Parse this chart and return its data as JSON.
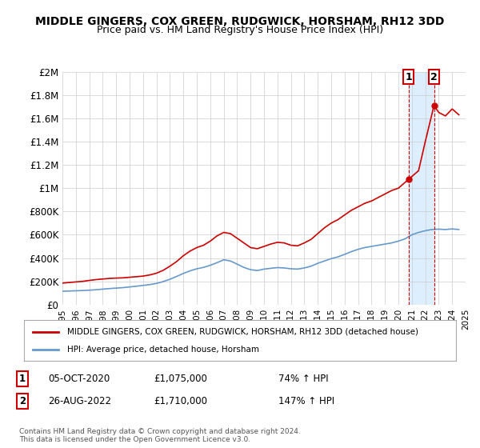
{
  "title": "MIDDLE GINGERS, COX GREEN, RUDGWICK, HORSHAM, RH12 3DD",
  "subtitle": "Price paid vs. HM Land Registry's House Price Index (HPI)",
  "legend_label_red": "MIDDLE GINGERS, COX GREEN, RUDGWICK, HORSHAM, RH12 3DD (detached house)",
  "legend_label_blue": "HPI: Average price, detached house, Horsham",
  "footer": "Contains HM Land Registry data © Crown copyright and database right 2024.\nThis data is licensed under the Open Government Licence v3.0.",
  "annotation1_num": "1",
  "annotation1_date": "05-OCT-2020",
  "annotation1_price": "£1,075,000",
  "annotation1_hpi": "74% ↑ HPI",
  "annotation2_num": "2",
  "annotation2_date": "26-AUG-2022",
  "annotation2_price": "£1,710,000",
  "annotation2_hpi": "147% ↑ HPI",
  "ylim": [
    0,
    2000000
  ],
  "yticks": [
    0,
    200000,
    400000,
    600000,
    800000,
    1000000,
    1200000,
    1400000,
    1600000,
    1800000,
    2000000
  ],
  "ytick_labels": [
    "£0",
    "£200K",
    "£400K",
    "£600K",
    "£800K",
    "£1M",
    "£1.2M",
    "£1.4M",
    "£1.6M",
    "£1.8M",
    "£2M"
  ],
  "red_color": "#cc0000",
  "blue_color": "#6699cc",
  "highlight_color": "#ddeeff",
  "vline_color": "#cc0000",
  "point1_x": 2020.75,
  "point1_y": 1075000,
  "point2_x": 2022.65,
  "point2_y": 1710000,
  "xmin": 1995,
  "xmax": 2025,
  "red_x": [
    1995,
    1995.5,
    1996,
    1996.5,
    1997,
    1997.5,
    1998,
    1998.5,
    1999,
    1999.5,
    2000,
    2000.5,
    2001,
    2001.5,
    2002,
    2002.5,
    2003,
    2003.5,
    2004,
    2004.5,
    2005,
    2005.5,
    2006,
    2006.5,
    2007,
    2007.5,
    2008,
    2008.5,
    2009,
    2009.5,
    2010,
    2010.5,
    2011,
    2011.5,
    2012,
    2012.5,
    2013,
    2013.5,
    2014,
    2014.5,
    2015,
    2015.5,
    2016,
    2016.5,
    2017,
    2017.5,
    2018,
    2018.5,
    2019,
    2019.5,
    2020,
    2020.75,
    2021,
    2021.5,
    2022,
    2022.65,
    2023,
    2023.5,
    2024,
    2024.5
  ],
  "red_y": [
    185000,
    190000,
    195000,
    200000,
    208000,
    215000,
    220000,
    225000,
    228000,
    230000,
    235000,
    240000,
    245000,
    255000,
    270000,
    295000,
    330000,
    370000,
    420000,
    460000,
    490000,
    510000,
    545000,
    590000,
    620000,
    610000,
    570000,
    530000,
    490000,
    480000,
    500000,
    520000,
    535000,
    530000,
    510000,
    505000,
    530000,
    560000,
    610000,
    660000,
    700000,
    730000,
    770000,
    810000,
    840000,
    870000,
    890000,
    920000,
    950000,
    980000,
    1000000,
    1075000,
    1100000,
    1150000,
    1400000,
    1710000,
    1650000,
    1620000,
    1680000,
    1630000
  ],
  "blue_x": [
    1995,
    1995.5,
    1996,
    1996.5,
    1997,
    1997.5,
    1998,
    1998.5,
    1999,
    1999.5,
    2000,
    2000.5,
    2001,
    2001.5,
    2002,
    2002.5,
    2003,
    2003.5,
    2004,
    2004.5,
    2005,
    2005.5,
    2006,
    2006.5,
    2007,
    2007.5,
    2008,
    2008.5,
    2009,
    2009.5,
    2010,
    2010.5,
    2011,
    2011.5,
    2012,
    2012.5,
    2013,
    2013.5,
    2014,
    2014.5,
    2015,
    2015.5,
    2016,
    2016.5,
    2017,
    2017.5,
    2018,
    2018.5,
    2019,
    2019.5,
    2020,
    2020.5,
    2021,
    2021.5,
    2022,
    2022.5,
    2023,
    2023.5,
    2024,
    2024.5
  ],
  "blue_y": [
    115000,
    117000,
    119000,
    121000,
    124000,
    128000,
    133000,
    138000,
    142000,
    146000,
    152000,
    158000,
    165000,
    172000,
    182000,
    198000,
    218000,
    242000,
    268000,
    290000,
    308000,
    320000,
    338000,
    360000,
    385000,
    375000,
    348000,
    320000,
    300000,
    293000,
    305000,
    312000,
    318000,
    315000,
    308000,
    305000,
    315000,
    330000,
    355000,
    375000,
    395000,
    410000,
    432000,
    455000,
    475000,
    490000,
    500000,
    510000,
    520000,
    530000,
    545000,
    565000,
    600000,
    620000,
    635000,
    645000,
    648000,
    645000,
    650000,
    645000
  ]
}
